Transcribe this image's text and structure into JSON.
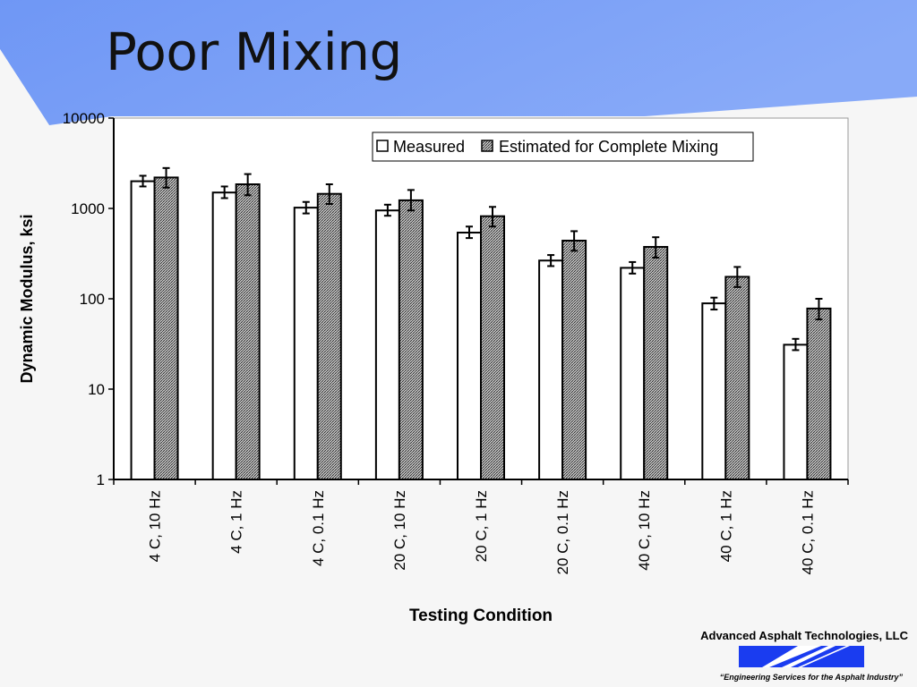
{
  "slide": {
    "title": "Poor Mixing",
    "company": "Advanced Asphalt Technologies, LLC",
    "tagline": "“Engineering Services for the Asphalt Industry”"
  },
  "colors": {
    "header_blue": "#6f97f5",
    "logo_blue": "#1a3cf0",
    "background": "#f6f6f6"
  },
  "chart_data": {
    "type": "bar",
    "yscale": "log",
    "ylim": [
      1,
      10000
    ],
    "yticks": [
      "1",
      "10",
      "100",
      "1000",
      "10000"
    ],
    "ylabel": "Dynamic Modulus, ksi",
    "xlabel": "Testing Condition",
    "grid": false,
    "legend_position": "top-right",
    "categories": [
      "4 C, 10 Hz",
      "4 C, 1 Hz",
      "4 C, 0.1 Hz",
      "20 C, 10 Hz",
      "20 C, 1 Hz",
      "20 C, 0.1 Hz",
      "40 C, 10 Hz",
      "40 C, 1 Hz",
      "40 C, 0.1 Hz"
    ],
    "series": [
      {
        "name": "Measured",
        "pattern": "white",
        "values": [
          2000,
          1500,
          1020,
          950,
          540,
          265,
          220,
          89,
          31
        ],
        "error_low": [
          1750,
          1300,
          880,
          830,
          470,
          230,
          190,
          76,
          27
        ],
        "error_high": [
          2300,
          1750,
          1180,
          1100,
          630,
          305,
          255,
          103,
          36
        ]
      },
      {
        "name": "Estimated for Complete Mixing",
        "pattern": "hatched",
        "values": [
          2200,
          1850,
          1450,
          1230,
          820,
          440,
          375,
          175,
          78
        ],
        "error_low": [
          1700,
          1400,
          1120,
          950,
          630,
          340,
          285,
          135,
          59
        ],
        "error_high": [
          2800,
          2400,
          1850,
          1600,
          1040,
          560,
          480,
          225,
          100
        ]
      }
    ]
  }
}
